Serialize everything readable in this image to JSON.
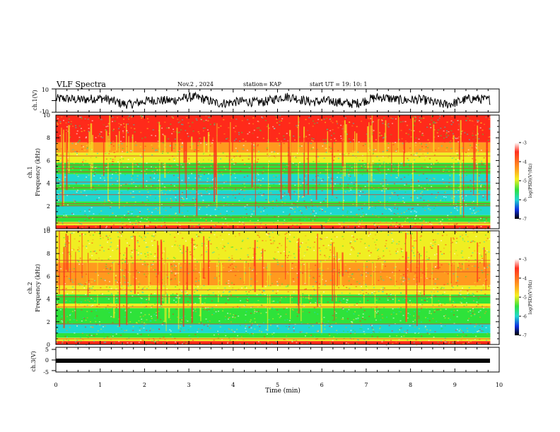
{
  "header": {
    "title": "VLF Spectra",
    "date": "Nov.2 , 2024",
    "station": "station= KAP",
    "start": "start UT = 19: 10: 1"
  },
  "colors": {
    "spec_red": "#ff2a1a",
    "spec_orange": "#ff9a1e",
    "spec_yellow": "#f0ee22",
    "spec_green": "#2ee23a",
    "spec_cyan": "#1ed8d0",
    "spec_blue": "#1236e8",
    "trace": "#000000"
  },
  "chart_data": [
    {
      "type": "line",
      "name": "ch1-waveform",
      "ylabel": "ch.1(V)",
      "ylim": [
        -10,
        10
      ],
      "yticks": [
        "10",
        "-10"
      ],
      "xlim": [
        0,
        10
      ],
      "description_values": "noisy waveform oscillating roughly between -6 and +6 V over 0-9.8 min"
    },
    {
      "type": "heatmap",
      "name": "ch1-spectrogram",
      "ylabel": "ch.1",
      "ylabel2": "Frequency (kHz)",
      "ylim": [
        0,
        10
      ],
      "yticks": [
        "0",
        "2",
        "4",
        "6",
        "8",
        "10"
      ],
      "xlim": [
        0,
        10
      ],
      "data_extent_min": 9.8,
      "colorbar": {
        "label": "log(PSD)(V²/Hz)",
        "range": [
          -7,
          -3
        ],
        "ticks": [
          "-3",
          "-4",
          "-5",
          "-6",
          "-7"
        ]
      },
      "bands_khz": [
        {
          "from": 0.0,
          "to": 0.3,
          "level": "red"
        },
        {
          "from": 0.3,
          "to": 0.6,
          "level": "yellow"
        },
        {
          "from": 0.6,
          "to": 1.2,
          "level": "green"
        },
        {
          "from": 1.2,
          "to": 2.0,
          "level": "cyan"
        },
        {
          "from": 2.0,
          "to": 2.4,
          "level": "green"
        },
        {
          "from": 2.4,
          "to": 3.4,
          "level": "cyan"
        },
        {
          "from": 3.4,
          "to": 3.9,
          "level": "green"
        },
        {
          "from": 3.9,
          "to": 4.8,
          "level": "cyan"
        },
        {
          "from": 4.8,
          "to": 5.8,
          "level": "green"
        },
        {
          "from": 5.8,
          "to": 6.7,
          "level": "yellow"
        },
        {
          "from": 6.7,
          "to": 7.6,
          "level": "orange"
        },
        {
          "from": 7.6,
          "to": 10.0,
          "level": "red"
        }
      ],
      "lines_khz": [
        0.5,
        1.0,
        2.0,
        2.2,
        3.0,
        3.6,
        4.1,
        5.0,
        5.3,
        5.6,
        6.4
      ]
    },
    {
      "type": "heatmap",
      "name": "ch2-spectrogram",
      "ylabel": "ch.2",
      "ylabel2": "Frequency (kHz)",
      "ylim": [
        0,
        10
      ],
      "yticks": [
        "0",
        "2",
        "4",
        "6",
        "8",
        "10"
      ],
      "xlim": [
        0,
        10
      ],
      "data_extent_min": 9.8,
      "colorbar": {
        "label": "log(PSD)(V²/Hz)",
        "range": [
          -7,
          -3
        ],
        "ticks": [
          "-3",
          "-4",
          "-5",
          "-6",
          "-7"
        ]
      },
      "bands_khz": [
        {
          "from": 0.0,
          "to": 0.3,
          "level": "red"
        },
        {
          "from": 0.3,
          "to": 0.6,
          "level": "yellow"
        },
        {
          "from": 0.6,
          "to": 1.0,
          "level": "green"
        },
        {
          "from": 1.0,
          "to": 1.8,
          "level": "cyan"
        },
        {
          "from": 1.8,
          "to": 3.2,
          "level": "green"
        },
        {
          "from": 3.2,
          "to": 3.6,
          "level": "yellow"
        },
        {
          "from": 3.6,
          "to": 4.4,
          "level": "green"
        },
        {
          "from": 4.4,
          "to": 5.2,
          "level": "yellow"
        },
        {
          "from": 5.2,
          "to": 7.2,
          "level": "orange"
        },
        {
          "from": 7.2,
          "to": 10.0,
          "level": "yellow_red"
        }
      ],
      "lines_khz": [
        0.5,
        1.8,
        3.3,
        4.2,
        4.8,
        6.4,
        7.4
      ]
    },
    {
      "type": "line",
      "name": "ch3-waveform",
      "ylabel": "ch.3(V)",
      "ylim": [
        -5,
        5
      ],
      "yticks": [
        "5",
        "0",
        "-5"
      ],
      "xlim": [
        0,
        10
      ],
      "xlabel": "Time (min)",
      "xticks": [
        "0",
        "1",
        "2",
        "3",
        "4",
        "5",
        "6",
        "7",
        "8",
        "9",
        "10"
      ],
      "constant_band": [
        -1.3,
        -0.3
      ]
    }
  ]
}
